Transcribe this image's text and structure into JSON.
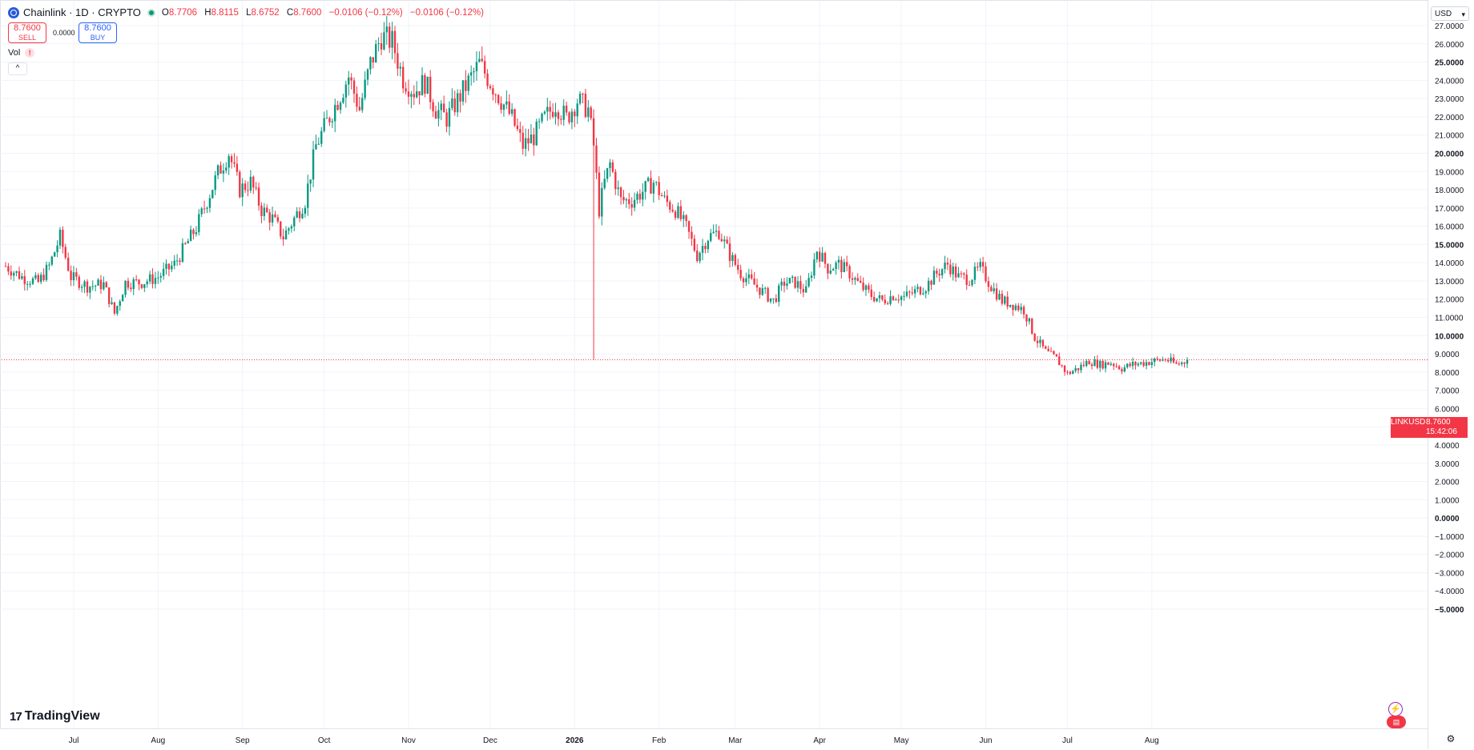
{
  "legend": {
    "title": "Chainlink · 1D · CRYPTO",
    "o_key": "O",
    "o": "8.7706",
    "h_key": "H",
    "h": "8.8115",
    "l_key": "L",
    "l": "8.6752",
    "c_key": "C",
    "c": "8.7600",
    "change": "−0.0106 (−0.12%)",
    "change2": "−0.0106 (−0.12%)"
  },
  "trade": {
    "sell_price": "8.7600",
    "sell_label": "SELL",
    "buy_price": "8.7600",
    "buy_label": "BUY",
    "spread": "0.0000"
  },
  "indicator": {
    "vol_label": "Vol",
    "warn": "!",
    "collapse": "^"
  },
  "currency": "USD",
  "brand": {
    "mark": "17",
    "name": "TradingView"
  },
  "price_tag": {
    "symbol": "LINKUSD",
    "price": "8.7600",
    "countdown": "15:42:06"
  },
  "icons": {
    "settings": "gear-icon",
    "alert": "lightning-icon",
    "flag": "flag-icon"
  },
  "colors": {
    "up": "#089981",
    "down": "#f23645",
    "grid": "#f0f3fa",
    "accent": "#2962ff"
  },
  "chart_data": {
    "type": "candlestick",
    "interval": "1D",
    "y_ticks": [
      "27.0000",
      "26.0000",
      "25.0000",
      "24.0000",
      "23.0000",
      "22.0000",
      "21.0000",
      "20.0000",
      "19.0000",
      "18.0000",
      "17.0000",
      "16.0000",
      "15.0000",
      "14.0000",
      "13.0000",
      "12.0000",
      "11.0000",
      "10.0000",
      "9.0000",
      "8.0000",
      "7.0000",
      "6.0000",
      "5.0000",
      "4.0000",
      "3.0000",
      "2.0000",
      "1.0000",
      "0.0000",
      "−1.0000",
      "−2.0000",
      "−3.0000",
      "−4.0000",
      "−5.0000"
    ],
    "y_tick_values": [
      27,
      26,
      25,
      24,
      23,
      22,
      21,
      20,
      19,
      18,
      17,
      16,
      15,
      14,
      13,
      12,
      11,
      10,
      9,
      8,
      7,
      6,
      5,
      4,
      3,
      2,
      1,
      0,
      -1,
      -2,
      -3,
      -4,
      -5
    ],
    "x_ticks": [
      "Jul",
      "Aug",
      "Sep",
      "Oct",
      "Nov",
      "Dec",
      "2026",
      "Feb",
      "Mar",
      "Apr",
      "May",
      "Jun",
      "Jul",
      "Aug"
    ],
    "x_tick_days": [
      25,
      56,
      87,
      117,
      148,
      178,
      209,
      240,
      268,
      299,
      329,
      360,
      390,
      421
    ],
    "last_price": 8.76,
    "points": [
      [
        0,
        13.9
      ],
      [
        6,
        13.3
      ],
      [
        12,
        13.0
      ],
      [
        16,
        13.9
      ],
      [
        20,
        15.5
      ],
      [
        24,
        13.3
      ],
      [
        30,
        12.8
      ],
      [
        36,
        12.9
      ],
      [
        40,
        11.3
      ],
      [
        44,
        13.0
      ],
      [
        50,
        13.0
      ],
      [
        56,
        13.3
      ],
      [
        62,
        14.0
      ],
      [
        66,
        15.0
      ],
      [
        70,
        16.0
      ],
      [
        74,
        17.5
      ],
      [
        78,
        19.0
      ],
      [
        82,
        20.1
      ],
      [
        86,
        18.1
      ],
      [
        90,
        18.5
      ],
      [
        94,
        17.0
      ],
      [
        98,
        16.5
      ],
      [
        102,
        15.5
      ],
      [
        106,
        16.5
      ],
      [
        110,
        17.5
      ],
      [
        114,
        20.5
      ],
      [
        118,
        21.8
      ],
      [
        122,
        23.0
      ],
      [
        126,
        24.3
      ],
      [
        130,
        22.5
      ],
      [
        134,
        25.0
      ],
      [
        138,
        26.5
      ],
      [
        142,
        26.2
      ],
      [
        146,
        24.2
      ],
      [
        150,
        23.5
      ],
      [
        154,
        24.0
      ],
      [
        158,
        22.5
      ],
      [
        162,
        22.0
      ],
      [
        166,
        23.0
      ],
      [
        170,
        24.0
      ],
      [
        174,
        25.0
      ],
      [
        178,
        24.0
      ],
      [
        182,
        23.0
      ],
      [
        186,
        22.0
      ],
      [
        190,
        20.5
      ],
      [
        194,
        21.0
      ],
      [
        198,
        22.0
      ],
      [
        202,
        22.8
      ],
      [
        206,
        22.0
      ],
      [
        210,
        23.0
      ],
      [
        214,
        22.5
      ],
      [
        216,
        20.5
      ],
      [
        218,
        17.0
      ],
      [
        220,
        18.5
      ],
      [
        222,
        19.5
      ],
      [
        226,
        17.5
      ],
      [
        230,
        17.5
      ],
      [
        234,
        18.0
      ],
      [
        238,
        18.5
      ],
      [
        242,
        17.5
      ],
      [
        246,
        17.0
      ],
      [
        250,
        16.0
      ],
      [
        254,
        14.5
      ],
      [
        258,
        15.5
      ],
      [
        262,
        15.8
      ],
      [
        266,
        14.5
      ],
      [
        270,
        13.5
      ],
      [
        274,
        13.0
      ],
      [
        278,
        12.5
      ],
      [
        282,
        12.0
      ],
      [
        286,
        13.0
      ],
      [
        290,
        13.0
      ],
      [
        294,
        12.5
      ],
      [
        298,
        14.8
      ],
      [
        302,
        13.8
      ],
      [
        306,
        14.0
      ],
      [
        310,
        13.5
      ],
      [
        314,
        12.8
      ],
      [
        318,
        12.3
      ],
      [
        322,
        12.0
      ],
      [
        326,
        12.3
      ],
      [
        330,
        12.2
      ],
      [
        334,
        12.5
      ],
      [
        338,
        12.8
      ],
      [
        342,
        13.5
      ],
      [
        346,
        14.0
      ],
      [
        350,
        13.3
      ],
      [
        354,
        13.2
      ],
      [
        358,
        13.8
      ],
      [
        362,
        12.8
      ],
      [
        366,
        12.0
      ],
      [
        370,
        11.8
      ],
      [
        374,
        11.5
      ],
      [
        378,
        10.0
      ],
      [
        382,
        9.2
      ],
      [
        386,
        8.8
      ],
      [
        390,
        8.0
      ],
      [
        394,
        8.3
      ],
      [
        398,
        8.7
      ],
      [
        402,
        8.5
      ],
      [
        406,
        8.6
      ],
      [
        410,
        8.3
      ],
      [
        414,
        8.5
      ],
      [
        418,
        8.6
      ],
      [
        422,
        8.7
      ],
      [
        426,
        8.8
      ],
      [
        430,
        8.5
      ],
      [
        434,
        8.7
      ]
    ]
  }
}
